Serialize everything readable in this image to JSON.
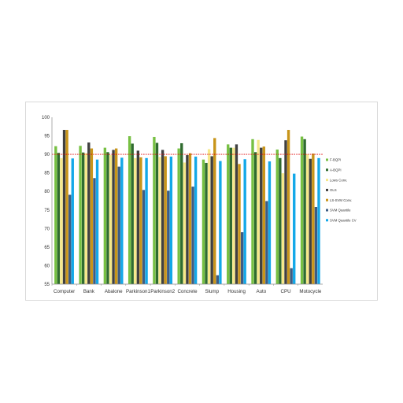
{
  "chart_data": {
    "type": "bar",
    "title": "",
    "xlabel": "",
    "ylabel": "",
    "ylim": [
      55,
      100
    ],
    "yticks": [
      "55",
      "60",
      "65",
      "70",
      "75",
      "80",
      "85",
      "90",
      "95",
      "100"
    ],
    "reference_line": {
      "value": 90,
      "color": "#e00000",
      "style": "dotted"
    },
    "legend_position": "right",
    "categories": [
      "Computer",
      "Bank",
      "Abalone",
      "Parkinson1",
      "Parkinson2",
      "Concrete",
      "Slump",
      "Housing",
      "Auto",
      "CPU",
      "Motocycle"
    ],
    "series": [
      {
        "name": "F-BQPI",
        "color": "#77c043",
        "values": [
          92.2,
          92.3,
          91.8,
          94.9,
          94.7,
          91.6,
          88.6,
          92.7,
          94.1,
          91.3,
          94.8
        ]
      },
      {
        "name": "A-BQPI",
        "color": "#2f6b2f",
        "values": [
          90.4,
          90.5,
          90.6,
          92.9,
          93.1,
          93.0,
          87.7,
          91.8,
          90.6,
          89.0,
          94.1
        ]
      },
      {
        "name": "Lows Conv.",
        "color": "#f6e88a",
        "values": [
          89.0,
          90.3,
          89.8,
          89.0,
          89.3,
          87.8,
          91.4,
          91.8,
          93.9,
          84.9,
          90.0
        ]
      },
      {
        "name": "OLS",
        "color": "#404040",
        "values": [
          96.6,
          93.2,
          91.2,
          91.0,
          91.2,
          89.8,
          89.5,
          92.7,
          91.8,
          93.8,
          88.8
        ]
      },
      {
        "name": "LS-SVM Conv.",
        "color": "#c8951a",
        "values": [
          96.6,
          91.6,
          91.6,
          89.2,
          89.5,
          90.3,
          94.4,
          87.4,
          92.1,
          96.6,
          90.2
        ]
      },
      {
        "name": "SVM Quantile",
        "color": "#3d5c84",
        "values": [
          79.1,
          83.6,
          86.7,
          80.4,
          80.2,
          81.3,
          57.4,
          69.0,
          77.4,
          59.3,
          75.8
        ]
      },
      {
        "name": "SVM Quantile CV",
        "color": "#13a8e8",
        "values": [
          88.9,
          88.6,
          89.1,
          89.0,
          89.4,
          89.4,
          88.2,
          88.7,
          88.1,
          84.8,
          89.0
        ]
      }
    ]
  }
}
